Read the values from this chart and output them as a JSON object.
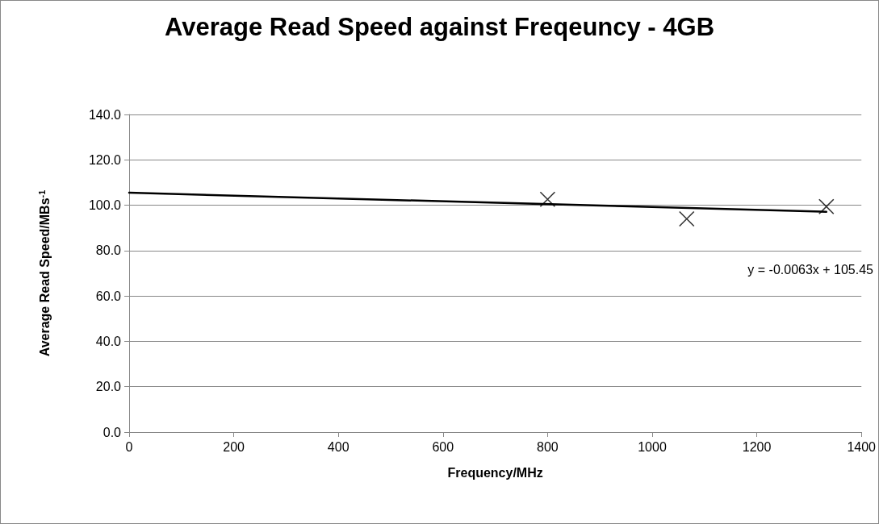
{
  "chart_data": {
    "type": "scatter",
    "title": "Average Read Speed against Freqeuncy - 4GB",
    "xlabel": "Frequency/MHz",
    "ylabel": "Average Read Speed/MBs$^{-1}$",
    "series": [
      {
        "color": "#000000",
        "marker": "cross",
        "x": [
          800,
          1066,
          1333
        ],
        "values": [
          102.6,
          94.0,
          99.4
        ]
      },
      {
        "type": "line",
        "color": "#000000",
        "marker": "none",
        "line_style": "solid",
        "x": [
          0,
          1333
        ],
        "values": [
          105.5,
          97.1
        ]
      }
    ],
    "xlim": [
      0,
      1400
    ],
    "xticks": [
      0,
      200,
      400,
      600,
      800,
      1000,
      1200,
      1400
    ],
    "ylim": [
      0,
      140
    ],
    "yticks": [
      {
        "value": 0,
        "label": "0.0"
      },
      {
        "value": 20,
        "label": "20.0"
      },
      {
        "value": 40,
        "label": "40.0"
      },
      {
        "value": 60,
        "label": "60.0"
      },
      {
        "value": 80,
        "label": "80.0"
      },
      {
        "value": 100,
        "label": "100.0"
      },
      {
        "value": 120,
        "label": "120.0"
      },
      {
        "value": 140,
        "label": "140.0"
      }
    ],
    "grid": "y",
    "annotations": [
      "y = -0.0063x + 105.45"
    ]
  }
}
